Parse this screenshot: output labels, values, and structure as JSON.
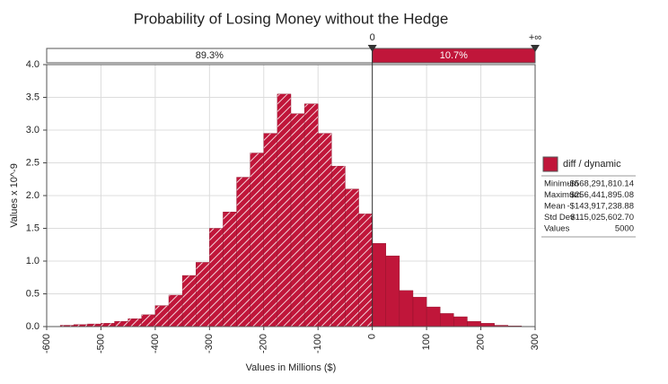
{
  "chart_data": {
    "type": "histogram",
    "title": "Probability of Losing Money without the Hedge",
    "xlabel": "Values in Millions ($)",
    "ylabel": "Values x 10^-9",
    "bins": [
      -575,
      -550,
      -525,
      -500,
      -475,
      -450,
      -425,
      -400,
      -375,
      -350,
      -325,
      -300,
      -275,
      -250,
      -225,
      -200,
      -175,
      -150,
      -125,
      -100,
      -75,
      -50,
      -25,
      0,
      25,
      50,
      75,
      100,
      125,
      150,
      175,
      200,
      225,
      250,
      275
    ],
    "values": [
      0.02,
      0.03,
      0.04,
      0.05,
      0.08,
      0.12,
      0.18,
      0.32,
      0.48,
      0.78,
      0.98,
      1.5,
      1.75,
      2.28,
      2.65,
      2.95,
      3.55,
      3.25,
      3.4,
      2.95,
      2.45,
      2.1,
      1.72,
      1.27,
      1.08,
      0.55,
      0.45,
      0.3,
      0.2,
      0.15,
      0.08,
      0.05,
      0.02,
      0.01
    ],
    "color": "#c0163a",
    "xlim": [
      -600,
      300
    ],
    "xticks": [
      -600,
      -500,
      -400,
      -300,
      -200,
      -100,
      0,
      100,
      200,
      300
    ],
    "ylim": [
      0,
      4
    ],
    "yticks": [
      {
        "value": 0,
        "label": "0.0"
      },
      0.5,
      {
        "value": 1,
        "label": "1.0"
      },
      1.5,
      {
        "value": 2,
        "label": "2.0"
      },
      2.5,
      {
        "value": 3,
        "label": "3.0"
      },
      3.5,
      {
        "value": 4,
        "label": "4.0"
      }
    ],
    "grid": true,
    "delimiter": 0,
    "upper_label": "+∞",
    "region_values": [
      89.3,
      10.7
    ],
    "region_value_labels": [
      "89.3%",
      "10.7%"
    ],
    "legend": {
      "name": "diff / dynamic",
      "stats": [
        [
          "Minimum",
          "-$568,291,810.14"
        ],
        [
          "Maximum",
          "$256,441,895.08"
        ],
        [
          "Mean",
          "-$143,917,238.88"
        ],
        [
          "Std Dev",
          "$115,025,602.70"
        ],
        [
          "Values",
          "5000"
        ]
      ]
    }
  }
}
